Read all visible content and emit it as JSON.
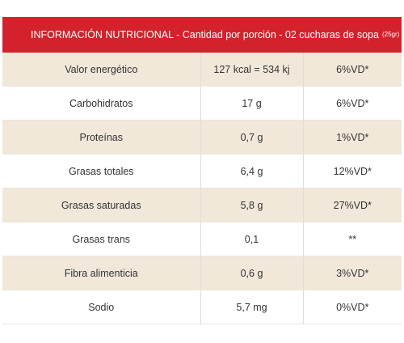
{
  "header": {
    "title": "INFORMACIÓN NUTRICIONAL",
    "subtitle": "- Cantidad por porción - 02 cucharas de sopa",
    "note": "(25gr)"
  },
  "table": {
    "rows": [
      [
        "Valor energético",
        "127 kcal = 534 kj",
        "6%VD*"
      ],
      [
        "Carbohidratos",
        "17 g",
        "6%VD*"
      ],
      [
        "Proteínas",
        "0,7 g",
        "1%VD*"
      ],
      [
        "Grasas totales",
        "6,4 g",
        "12%VD*"
      ],
      [
        "Grasas saturadas",
        "5,8 g",
        "27%VD*"
      ],
      [
        "Grasas trans",
        "0,1",
        "**"
      ],
      [
        "Fibra alimenticia",
        "0,6 g",
        "3%VD*"
      ],
      [
        "Sodio",
        "5,7 mg",
        "0%VD*"
      ]
    ]
  }
}
